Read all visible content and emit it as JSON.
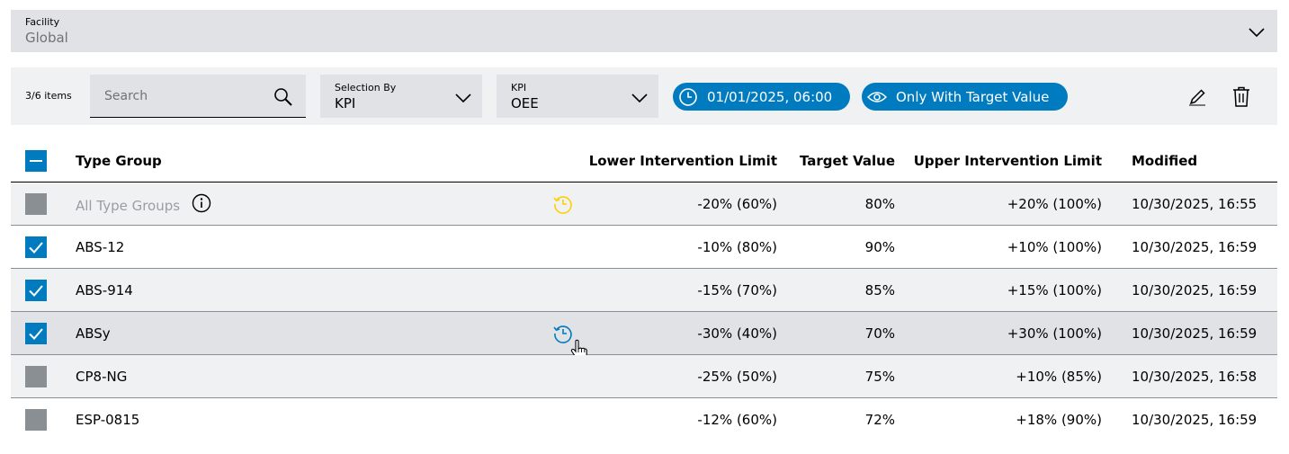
{
  "facility": {
    "label": "Facility",
    "value": "Global"
  },
  "toolbar": {
    "count": "3/6 items",
    "search_placeholder": "Search",
    "selection_by": {
      "label": "Selection By",
      "value": "KPI"
    },
    "kpi": {
      "label": "KPI",
      "value": "OEE"
    },
    "date_chip": "01/01/2025, 06:00",
    "target_chip": "Only With Target Value"
  },
  "table": {
    "headers": {
      "type_group": "Type Group",
      "lower": "Lower Intervention Limit",
      "target": "Target Value",
      "upper": "Upper Intervention Limit",
      "modified": "Modified"
    },
    "rows": [
      {
        "name": "All Type Groups",
        "lower": "-20% (60%)",
        "target": "80%",
        "upper": "+20% (100%)",
        "modified": "10/30/2025, 16:55"
      },
      {
        "name": "ABS-12",
        "lower": "-10% (80%)",
        "target": "90%",
        "upper": "+10% (100%)",
        "modified": "10/30/2025, 16:59"
      },
      {
        "name": "ABS-914",
        "lower": "-15% (70%)",
        "target": "85%",
        "upper": "+15% (100%)",
        "modified": "10/30/2025, 16:59"
      },
      {
        "name": "ABSy",
        "lower": "-30% (40%)",
        "target": "70%",
        "upper": "+30% (100%)",
        "modified": "10/30/2025, 16:59"
      },
      {
        "name": "CP8-NG",
        "lower": "-25% (50%)",
        "target": "75%",
        "upper": "+10% (85%)",
        "modified": "10/30/2025, 16:58"
      },
      {
        "name": "ESP-0815",
        "lower": "-12% (60%)",
        "target": "72%",
        "upper": "+18% (90%)",
        "modified": "10/30/2025, 16:59"
      }
    ]
  },
  "colors": {
    "accent": "#007bc0",
    "history_warning": "#ffcf00",
    "history_active": "#007bc0"
  }
}
